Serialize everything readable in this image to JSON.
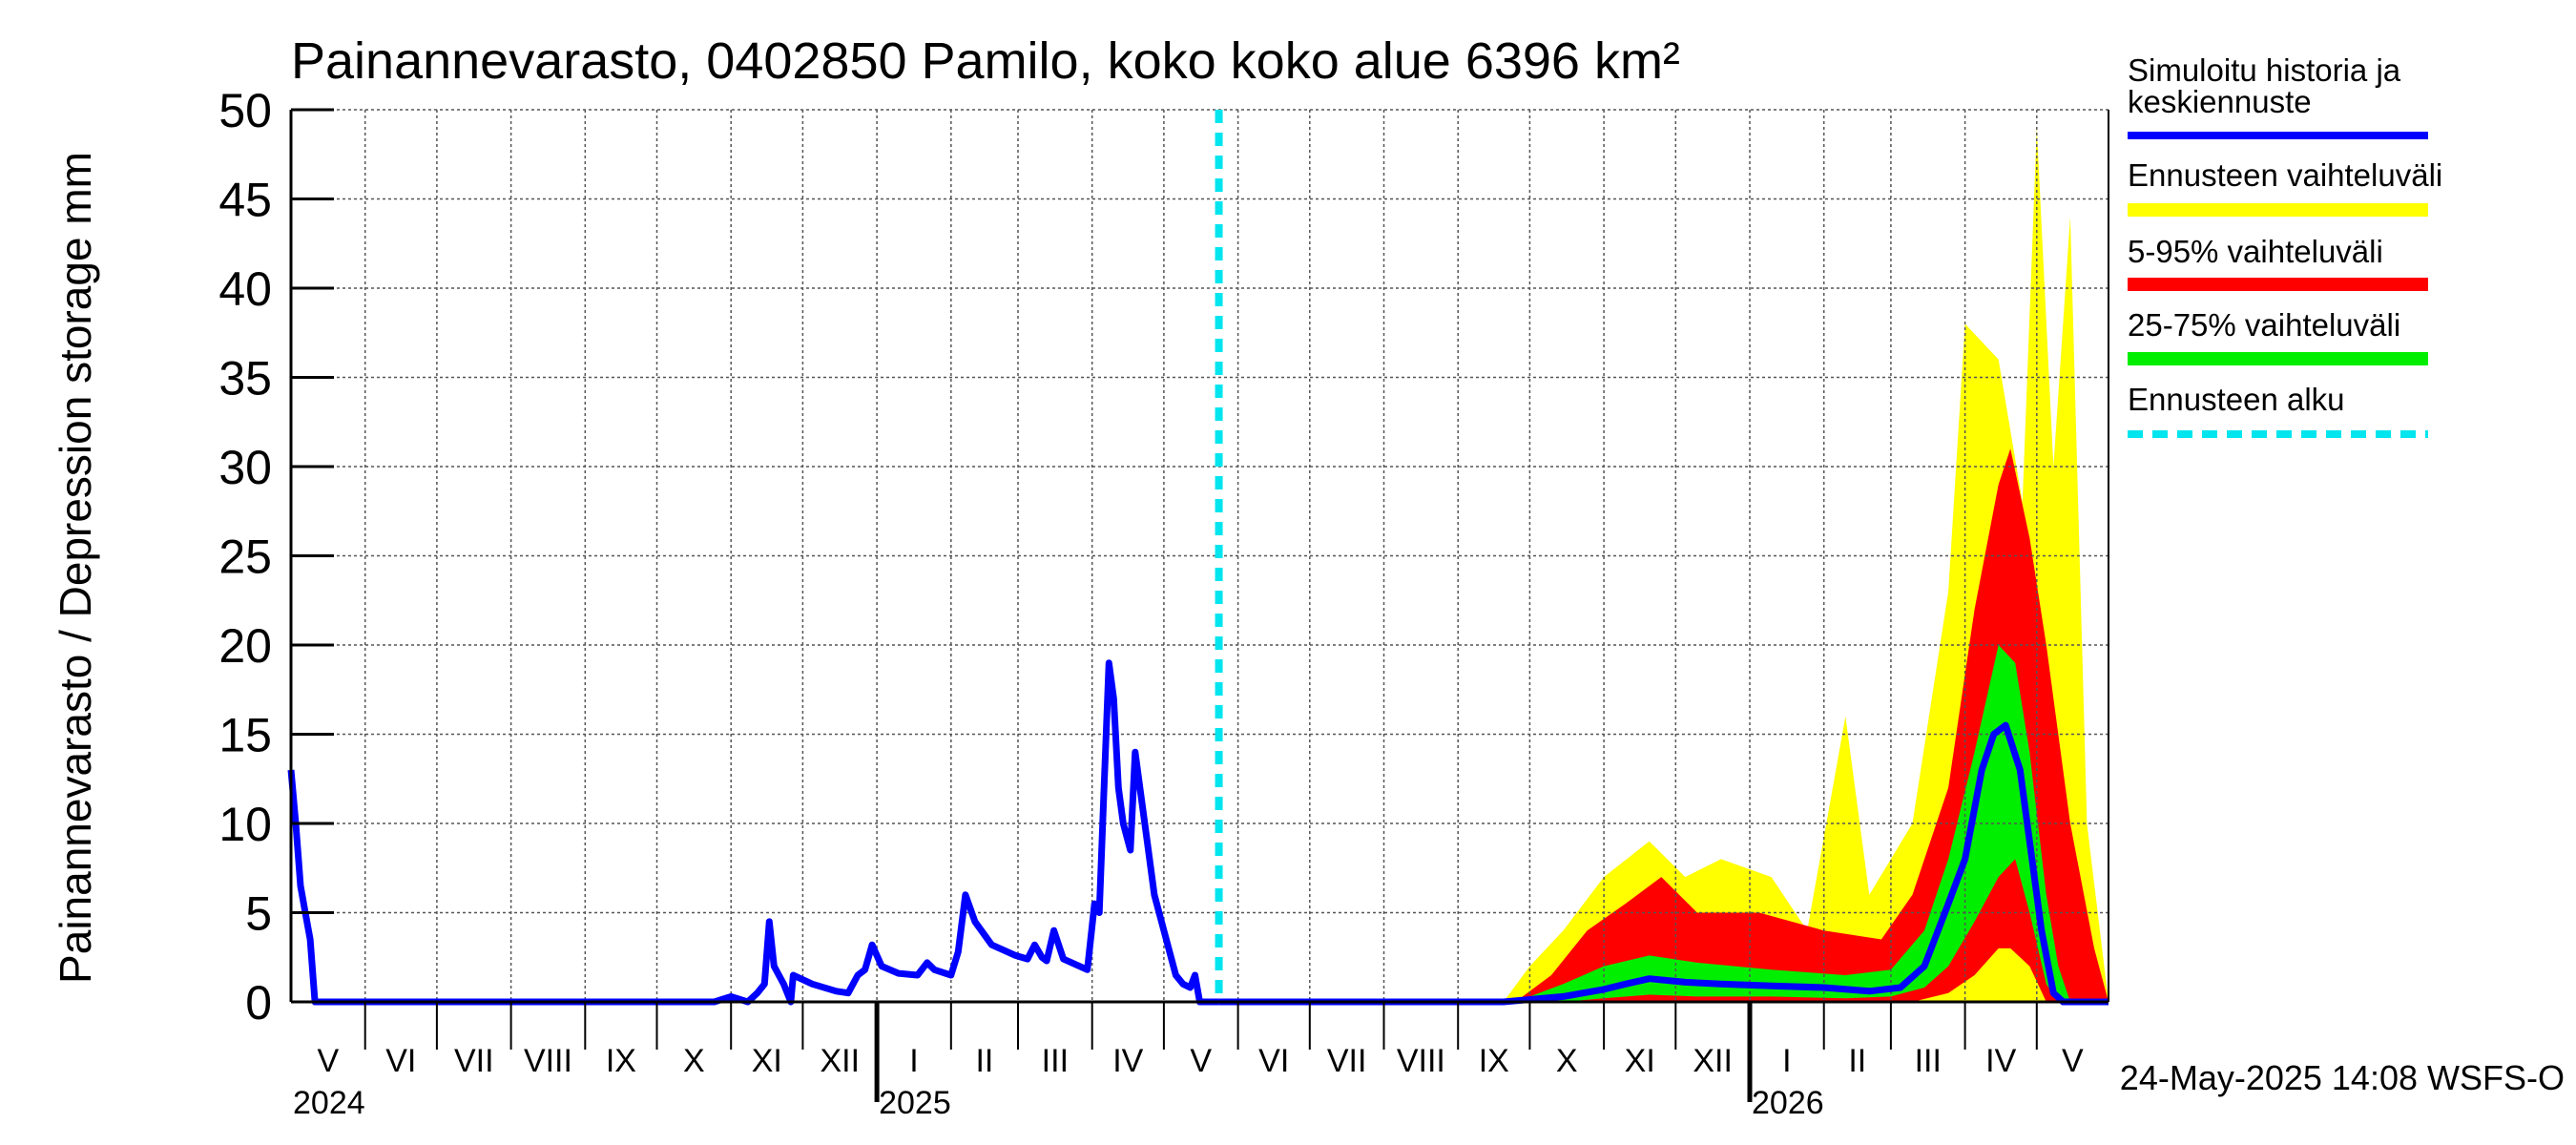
{
  "chart_data": {
    "type": "area",
    "title": "Painannevarasto, 0402850 Pamilo, koko koko alue 6396 km²",
    "ylabel": "Painannevarasto / Depression storage    mm",
    "ylim": [
      0,
      50
    ],
    "yticks": [
      0,
      5,
      10,
      15,
      20,
      25,
      30,
      35,
      40,
      45,
      50
    ],
    "x_range": [
      "2024-05-01",
      "2026-05-31"
    ],
    "month_labels": [
      {
        "label": "V",
        "date": "2024-05-01",
        "end": "2024-06-01"
      },
      {
        "label": "VI",
        "date": "2024-06-01",
        "end": "2024-07-01"
      },
      {
        "label": "VII",
        "date": "2024-07-01",
        "end": "2024-08-01"
      },
      {
        "label": "VIII",
        "date": "2024-08-01",
        "end": "2024-09-01"
      },
      {
        "label": "IX",
        "date": "2024-09-01",
        "end": "2024-10-01"
      },
      {
        "label": "X",
        "date": "2024-10-01",
        "end": "2024-11-01"
      },
      {
        "label": "XI",
        "date": "2024-11-01",
        "end": "2024-12-01"
      },
      {
        "label": "XII",
        "date": "2024-12-01",
        "end": "2025-01-01"
      },
      {
        "label": "I",
        "date": "2025-01-01",
        "end": "2025-02-01"
      },
      {
        "label": "II",
        "date": "2025-02-01",
        "end": "2025-03-01"
      },
      {
        "label": "III",
        "date": "2025-03-01",
        "end": "2025-04-01"
      },
      {
        "label": "IV",
        "date": "2025-04-01",
        "end": "2025-05-01"
      },
      {
        "label": "V",
        "date": "2025-05-01",
        "end": "2025-06-01"
      },
      {
        "label": "VI",
        "date": "2025-06-01",
        "end": "2025-07-01"
      },
      {
        "label": "VII",
        "date": "2025-07-01",
        "end": "2025-08-01"
      },
      {
        "label": "VIII",
        "date": "2025-08-01",
        "end": "2025-09-01"
      },
      {
        "label": "IX",
        "date": "2025-09-01",
        "end": "2025-10-01"
      },
      {
        "label": "X",
        "date": "2025-10-01",
        "end": "2025-11-01"
      },
      {
        "label": "XI",
        "date": "2025-11-01",
        "end": "2025-12-01"
      },
      {
        "label": "XII",
        "date": "2025-12-01",
        "end": "2026-01-01"
      },
      {
        "label": "I",
        "date": "2026-01-01",
        "end": "2026-02-01"
      },
      {
        "label": "II",
        "date": "2026-02-01",
        "end": "2026-03-01"
      },
      {
        "label": "III",
        "date": "2026-03-01",
        "end": "2026-04-01"
      },
      {
        "label": "IV",
        "date": "2026-04-01",
        "end": "2026-05-01"
      },
      {
        "label": "V",
        "date": "2026-05-01",
        "end": "2026-05-31"
      }
    ],
    "year_labels": [
      {
        "label": "2024",
        "date": "2024-05-01"
      },
      {
        "label": "2025",
        "date": "2025-01-01"
      },
      {
        "label": "2026",
        "date": "2026-01-01"
      }
    ],
    "forecast_start": "2025-05-24",
    "grid": true,
    "legend_position": "right",
    "legend": [
      {
        "label": "Simuloitu historia ja keskiennuste",
        "color": "#0000ff",
        "style": "line"
      },
      {
        "label": "Ennusteen vaihteluväli",
        "color": "#ffff00",
        "style": "band"
      },
      {
        "label": "5-95% vaihteluväli",
        "color": "#ff0000",
        "style": "band"
      },
      {
        "label": "25-75% vaihteluväli",
        "color": "#00ee00",
        "style": "band"
      },
      {
        "label": "Ennusteen alku",
        "color": "#00e5ee",
        "style": "dashed"
      }
    ],
    "history": [
      [
        "2024-05-01",
        13
      ],
      [
        "2024-05-03",
        10
      ],
      [
        "2024-05-05",
        6.5
      ],
      [
        "2024-05-07",
        5
      ],
      [
        "2024-05-09",
        3.5
      ],
      [
        "2024-05-11",
        0
      ],
      [
        "2024-10-25",
        0
      ],
      [
        "2024-11-01",
        0.3
      ],
      [
        "2024-11-08",
        0
      ],
      [
        "2024-11-12",
        0.5
      ],
      [
        "2024-11-15",
        1
      ],
      [
        "2024-11-17",
        4.5
      ],
      [
        "2024-11-19",
        2
      ],
      [
        "2024-11-23",
        1
      ],
      [
        "2024-11-26",
        0
      ],
      [
        "2024-11-27",
        1.5
      ],
      [
        "2024-12-05",
        1
      ],
      [
        "2024-12-15",
        0.6
      ],
      [
        "2024-12-20",
        0.5
      ],
      [
        "2024-12-24",
        1.5
      ],
      [
        "2024-12-27",
        1.8
      ],
      [
        "2024-12-30",
        3.2
      ],
      [
        "2025-01-03",
        2
      ],
      [
        "2025-01-10",
        1.6
      ],
      [
        "2025-01-18",
        1.5
      ],
      [
        "2025-01-22",
        2.2
      ],
      [
        "2025-01-25",
        1.8
      ],
      [
        "2025-02-01",
        1.5
      ],
      [
        "2025-02-04",
        2.8
      ],
      [
        "2025-02-07",
        6
      ],
      [
        "2025-02-11",
        4.5
      ],
      [
        "2025-02-18",
        3.2
      ],
      [
        "2025-02-28",
        2.6
      ],
      [
        "2025-03-05",
        2.4
      ],
      [
        "2025-03-08",
        3.2
      ],
      [
        "2025-03-11",
        2.5
      ],
      [
        "2025-03-13",
        2.3
      ],
      [
        "2025-03-16",
        4
      ],
      [
        "2025-03-20",
        2.4
      ],
      [
        "2025-03-30",
        1.8
      ],
      [
        "2025-04-02",
        5.5
      ],
      [
        "2025-04-04",
        5
      ],
      [
        "2025-04-06",
        12
      ],
      [
        "2025-04-08",
        19
      ],
      [
        "2025-04-10",
        17
      ],
      [
        "2025-04-12",
        12
      ],
      [
        "2025-04-14",
        10
      ],
      [
        "2025-04-17",
        8.5
      ],
      [
        "2025-04-19",
        14
      ],
      [
        "2025-04-21",
        12
      ],
      [
        "2025-04-24",
        9
      ],
      [
        "2025-04-27",
        6
      ],
      [
        "2025-04-30",
        4.5
      ],
      [
        "2025-05-03",
        3
      ],
      [
        "2025-05-06",
        1.5
      ],
      [
        "2025-05-09",
        1
      ],
      [
        "2025-05-12",
        0.8
      ],
      [
        "2025-05-14",
        1.5
      ],
      [
        "2025-05-16",
        0
      ],
      [
        "2025-05-24",
        0
      ]
    ],
    "forecast_median": [
      [
        "2025-05-24",
        0
      ],
      [
        "2025-09-20",
        0
      ],
      [
        "2025-10-15",
        0.3
      ],
      [
        "2025-11-01",
        0.7
      ],
      [
        "2025-11-10",
        1
      ],
      [
        "2025-11-20",
        1.3
      ],
      [
        "2025-12-05",
        1.1
      ],
      [
        "2025-12-20",
        1
      ],
      [
        "2026-01-10",
        0.9
      ],
      [
        "2026-02-01",
        0.8
      ],
      [
        "2026-02-20",
        0.6
      ],
      [
        "2026-03-05",
        0.8
      ],
      [
        "2026-03-15",
        2
      ],
      [
        "2026-03-25",
        5.5
      ],
      [
        "2026-04-01",
        8
      ],
      [
        "2026-04-08",
        13
      ],
      [
        "2026-04-13",
        15
      ],
      [
        "2026-04-18",
        15.5
      ],
      [
        "2026-04-24",
        13
      ],
      [
        "2026-04-28",
        9
      ],
      [
        "2026-05-03",
        4
      ],
      [
        "2026-05-08",
        0.5
      ],
      [
        "2026-05-12",
        0
      ],
      [
        "2026-05-31",
        0
      ]
    ],
    "band_25_75": [
      [
        "2025-05-24",
        0,
        0
      ],
      [
        "2025-09-25",
        0,
        0
      ],
      [
        "2025-10-15",
        0,
        1
      ],
      [
        "2025-11-01",
        0.2,
        2
      ],
      [
        "2025-11-20",
        0.4,
        2.6
      ],
      [
        "2025-12-10",
        0.3,
        2.2
      ],
      [
        "2026-01-10",
        0.3,
        1.8
      ],
      [
        "2026-02-10",
        0.2,
        1.5
      ],
      [
        "2026-03-01",
        0.3,
        1.8
      ],
      [
        "2026-03-15",
        0.8,
        4
      ],
      [
        "2026-03-25",
        2,
        8
      ],
      [
        "2026-04-05",
        4.5,
        14
      ],
      [
        "2026-04-15",
        7,
        20
      ],
      [
        "2026-04-22",
        8,
        19
      ],
      [
        "2026-04-28",
        5,
        14
      ],
      [
        "2026-05-05",
        1,
        6
      ],
      [
        "2026-05-10",
        0,
        2
      ],
      [
        "2026-05-15",
        0,
        0
      ],
      [
        "2026-05-31",
        0,
        0
      ]
    ],
    "band_5_95": [
      [
        "2025-05-24",
        0,
        0
      ],
      [
        "2025-09-25",
        0,
        0
      ],
      [
        "2025-10-10",
        0,
        1.5
      ],
      [
        "2025-10-25",
        0,
        4
      ],
      [
        "2025-11-10",
        0,
        5.5
      ],
      [
        "2025-11-25",
        0,
        7
      ],
      [
        "2025-12-10",
        0,
        5
      ],
      [
        "2026-01-05",
        0,
        5
      ],
      [
        "2026-02-01",
        0,
        4
      ],
      [
        "2026-02-25",
        0,
        3.5
      ],
      [
        "2026-03-10",
        0,
        6
      ],
      [
        "2026-03-25",
        0.5,
        12
      ],
      [
        "2026-04-05",
        1.5,
        22
      ],
      [
        "2026-04-15",
        3,
        29
      ],
      [
        "2026-04-20",
        3,
        31
      ],
      [
        "2026-04-28",
        2,
        26
      ],
      [
        "2026-05-05",
        0,
        20
      ],
      [
        "2026-05-15",
        0,
        10
      ],
      [
        "2026-05-25",
        0,
        3
      ],
      [
        "2026-05-31",
        0,
        0
      ]
    ],
    "band_range": [
      [
        "2025-05-24",
        0,
        0
      ],
      [
        "2025-09-20",
        0,
        0
      ],
      [
        "2025-10-01",
        0,
        2
      ],
      [
        "2025-10-15",
        0,
        4
      ],
      [
        "2025-11-01",
        0,
        7
      ],
      [
        "2025-11-20",
        0,
        9
      ],
      [
        "2025-12-05",
        0,
        7
      ],
      [
        "2025-12-20",
        0,
        8
      ],
      [
        "2026-01-10",
        0,
        7
      ],
      [
        "2026-01-25",
        0,
        4
      ],
      [
        "2026-02-10",
        0,
        16
      ],
      [
        "2026-02-20",
        0,
        6
      ],
      [
        "2026-03-10",
        0,
        10
      ],
      [
        "2026-03-25",
        0,
        23
      ],
      [
        "2026-04-01",
        0,
        38
      ],
      [
        "2026-04-15",
        0,
        36
      ],
      [
        "2026-04-25",
        0,
        28
      ],
      [
        "2026-05-01",
        0,
        49
      ],
      [
        "2026-05-08",
        0,
        30
      ],
      [
        "2026-05-15",
        0,
        44
      ],
      [
        "2026-05-22",
        0,
        10
      ],
      [
        "2026-05-31",
        0,
        0
      ]
    ]
  },
  "footer": {
    "timestamp": "24-May-2025 14:08 WSFS-O"
  }
}
